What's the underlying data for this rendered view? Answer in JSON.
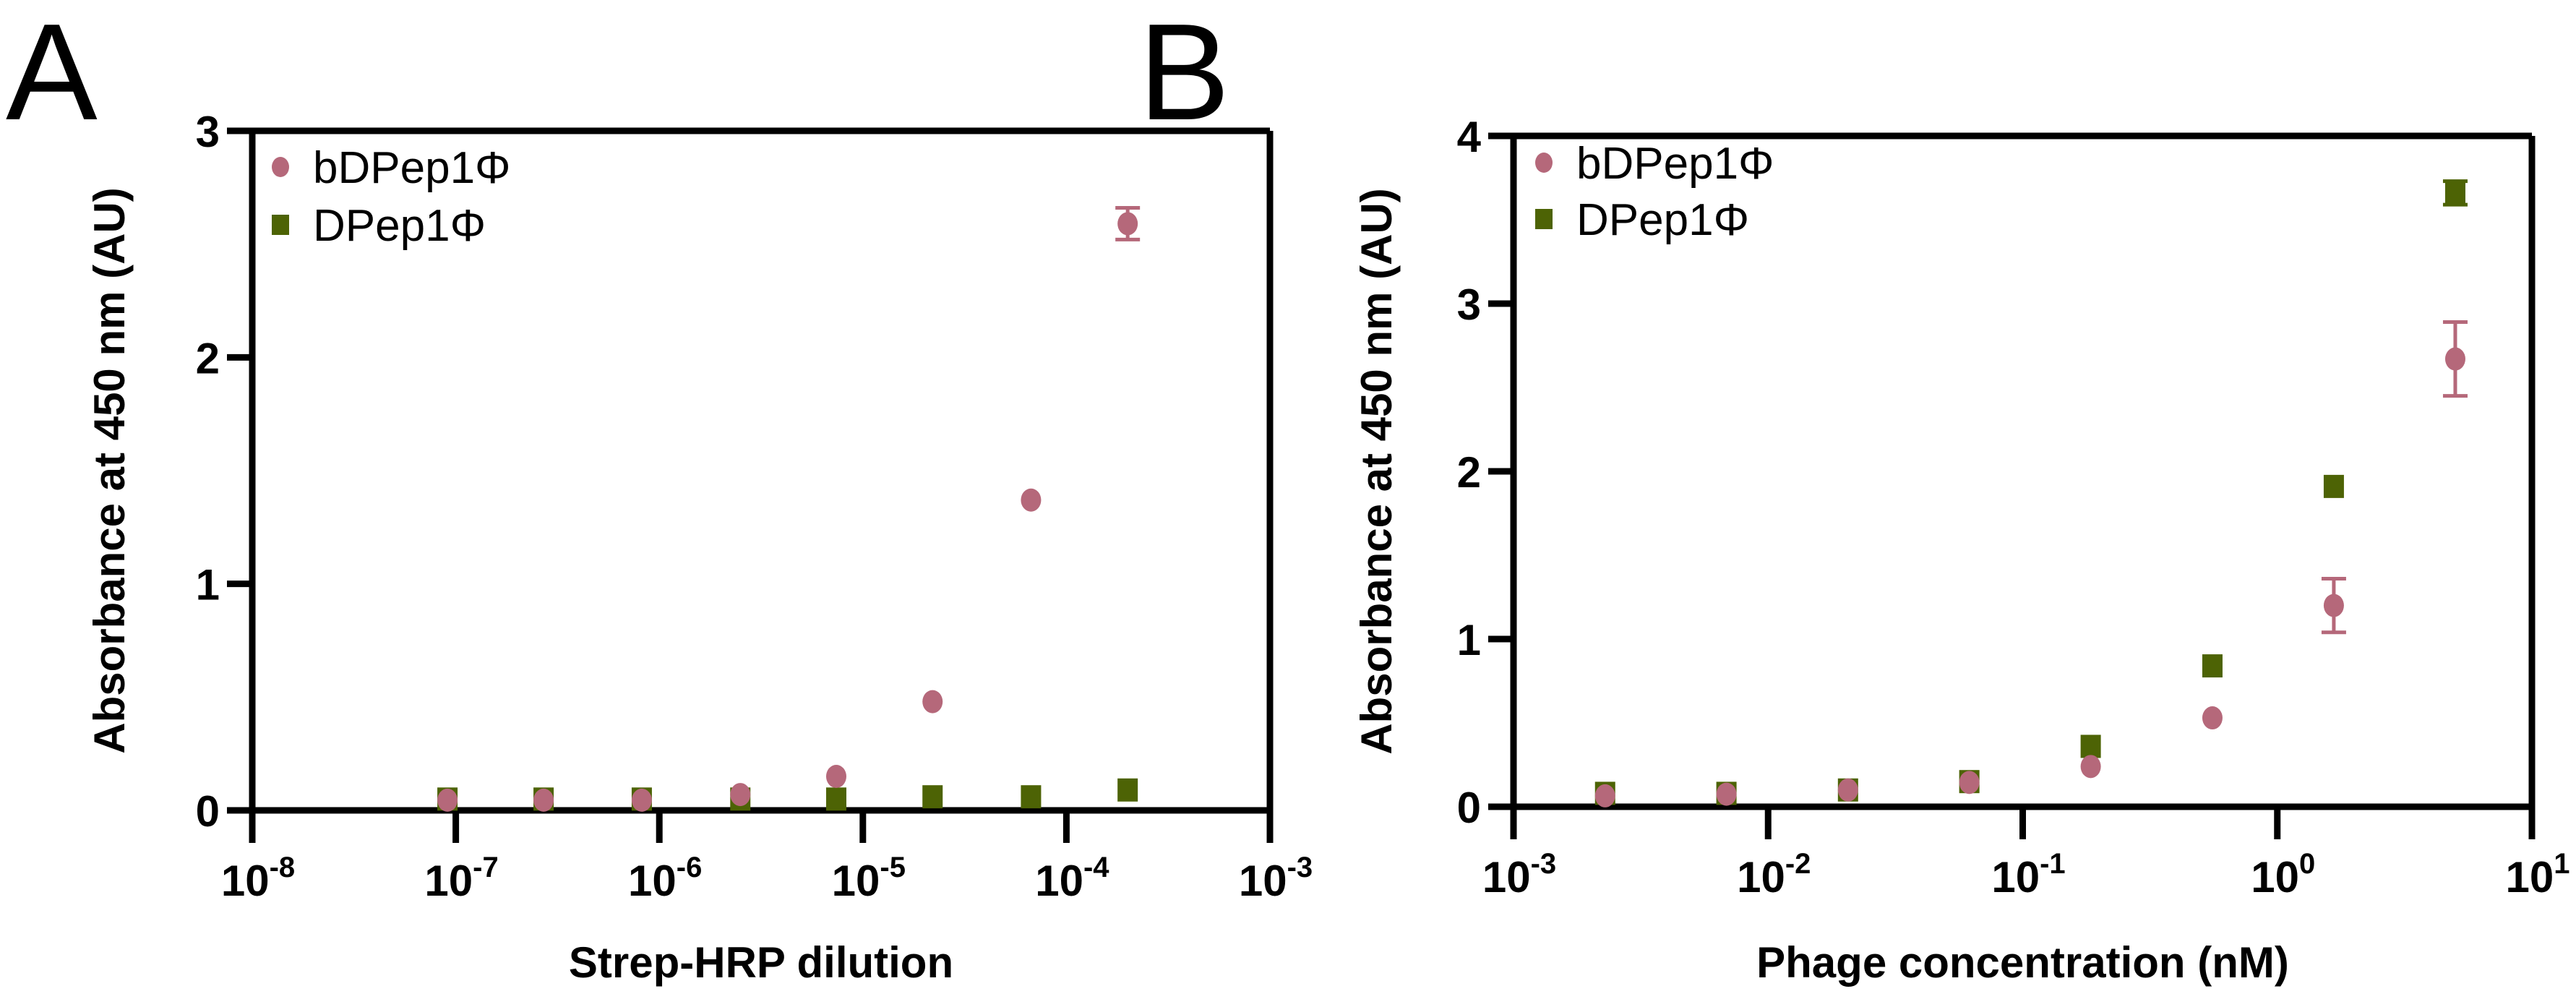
{
  "chart_data": [
    {
      "panel_label": "A",
      "type": "scatter",
      "title": "",
      "xlabel": "Strep-HRP dilution",
      "ylabel": "Absorbance at 450 nm (AU)",
      "xscale": "log",
      "xlim": [
        1e-08,
        0.001
      ],
      "ylim": [
        0,
        3
      ],
      "x_ticks": [
        {
          "base": "10",
          "exp": "-8"
        },
        {
          "base": "10",
          "exp": "-7"
        },
        {
          "base": "10",
          "exp": "-6"
        },
        {
          "base": "10",
          "exp": "-5"
        },
        {
          "base": "10",
          "exp": "-4"
        },
        {
          "base": "10",
          "exp": "-3"
        }
      ],
      "y_ticks": [
        "0",
        "1",
        "2",
        "3"
      ],
      "grid": false,
      "legend_position": "top-left",
      "x": [
        9.1e-08,
        2.7e-07,
        8.2e-07,
        2.5e-06,
        7.4e-06,
        2.2e-05,
        6.7e-05,
        0.0002
      ],
      "series": [
        {
          "name": "bDPep1Φ",
          "marker": "circle",
          "color": "#b5687a",
          "values": [
            0.045,
            0.045,
            0.045,
            0.07,
            0.15,
            0.48,
            1.37,
            2.59
          ],
          "errors": [
            0,
            0,
            0,
            0,
            0,
            0,
            0,
            0.07
          ]
        },
        {
          "name": "DPep1Φ",
          "marker": "square",
          "color": "#4d6305",
          "values": [
            0.05,
            0.05,
            0.05,
            0.05,
            0.05,
            0.06,
            0.06,
            0.09
          ],
          "errors": [
            0,
            0,
            0,
            0,
            0,
            0,
            0,
            0
          ]
        }
      ]
    },
    {
      "panel_label": "B",
      "type": "scatter",
      "title": "",
      "xlabel": "Phage concentration (nM)",
      "ylabel": "Absorbance at 450 nm (AU)",
      "xscale": "log",
      "xlim": [
        0.001,
        10
      ],
      "ylim": [
        0,
        4
      ],
      "x_ticks": [
        {
          "base": "10",
          "exp": "-3"
        },
        {
          "base": "10",
          "exp": "-2"
        },
        {
          "base": "10",
          "exp": "-1"
        },
        {
          "base": "10",
          "exp": "0"
        },
        {
          "base": "10",
          "exp": "1"
        }
      ],
      "y_ticks": [
        "0",
        "1",
        "2",
        "3",
        "4"
      ],
      "grid": false,
      "legend_position": "top-left",
      "x": [
        0.00229,
        0.00686,
        0.0206,
        0.0617,
        0.185,
        0.556,
        1.667,
        5.0
      ],
      "series": [
        {
          "name": "bDPep1Φ",
          "marker": "circle",
          "color": "#b5687a",
          "values": [
            0.065,
            0.075,
            0.1,
            0.145,
            0.24,
            0.53,
            1.2,
            2.67
          ],
          "errors": [
            0,
            0,
            0,
            0,
            0,
            0,
            0.16,
            0.22
          ]
        },
        {
          "name": "DPep1Φ",
          "marker": "square",
          "color": "#4d6305",
          "values": [
            0.08,
            0.08,
            0.1,
            0.15,
            0.36,
            0.84,
            1.91,
            3.66
          ],
          "errors": [
            0,
            0,
            0,
            0,
            0,
            0,
            0,
            0.07
          ]
        }
      ]
    }
  ]
}
